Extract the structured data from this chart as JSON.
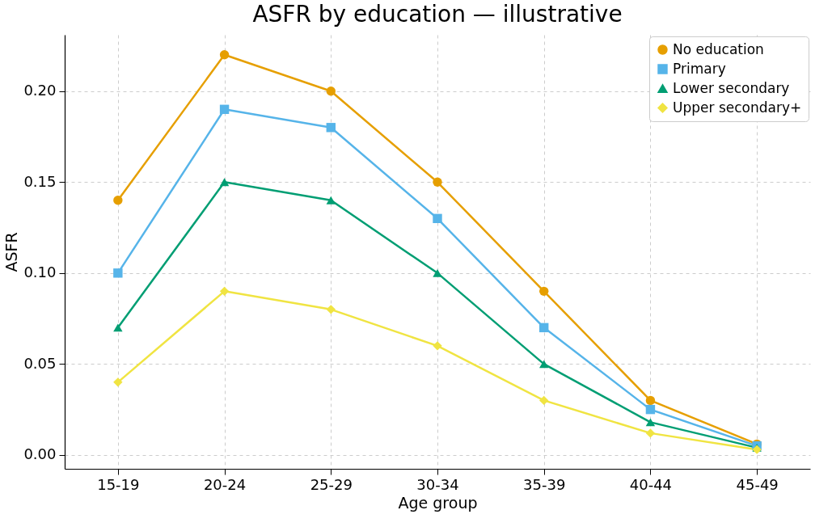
{
  "chart_data": {
    "type": "line",
    "title": "ASFR by education — illustrative",
    "xlabel": "Age group",
    "ylabel": "ASFR",
    "categories": [
      "15-19",
      "20-24",
      "25-29",
      "30-34",
      "35-39",
      "40-44",
      "45-49"
    ],
    "series": [
      {
        "name": "No education",
        "color": "#e69f00",
        "marker": "circle",
        "values": [
          0.14,
          0.22,
          0.2,
          0.15,
          0.09,
          0.03,
          0.006
        ]
      },
      {
        "name": "Primary",
        "color": "#56b4e9",
        "marker": "square",
        "values": [
          0.1,
          0.19,
          0.18,
          0.13,
          0.07,
          0.025,
          0.005
        ]
      },
      {
        "name": "Lower secondary",
        "color": "#009e73",
        "marker": "triangle",
        "values": [
          0.07,
          0.15,
          0.14,
          0.1,
          0.05,
          0.018,
          0.004
        ]
      },
      {
        "name": "Upper secondary+",
        "color": "#f0e442",
        "marker": "diamond",
        "values": [
          0.04,
          0.09,
          0.08,
          0.06,
          0.03,
          0.012,
          0.003
        ]
      }
    ],
    "ylim": [
      -0.0076,
      0.231
    ],
    "yticks": [
      {
        "value": 0,
        "label": "0.00"
      },
      {
        "value": 0.05,
        "label": "0.05"
      },
      {
        "value": 0.1,
        "label": "0.10"
      },
      {
        "value": 0.15,
        "label": "0.15"
      },
      {
        "value": 0.2,
        "label": "0.20"
      }
    ],
    "grid": true,
    "legend": "top right",
    "line_style": "solid"
  }
}
